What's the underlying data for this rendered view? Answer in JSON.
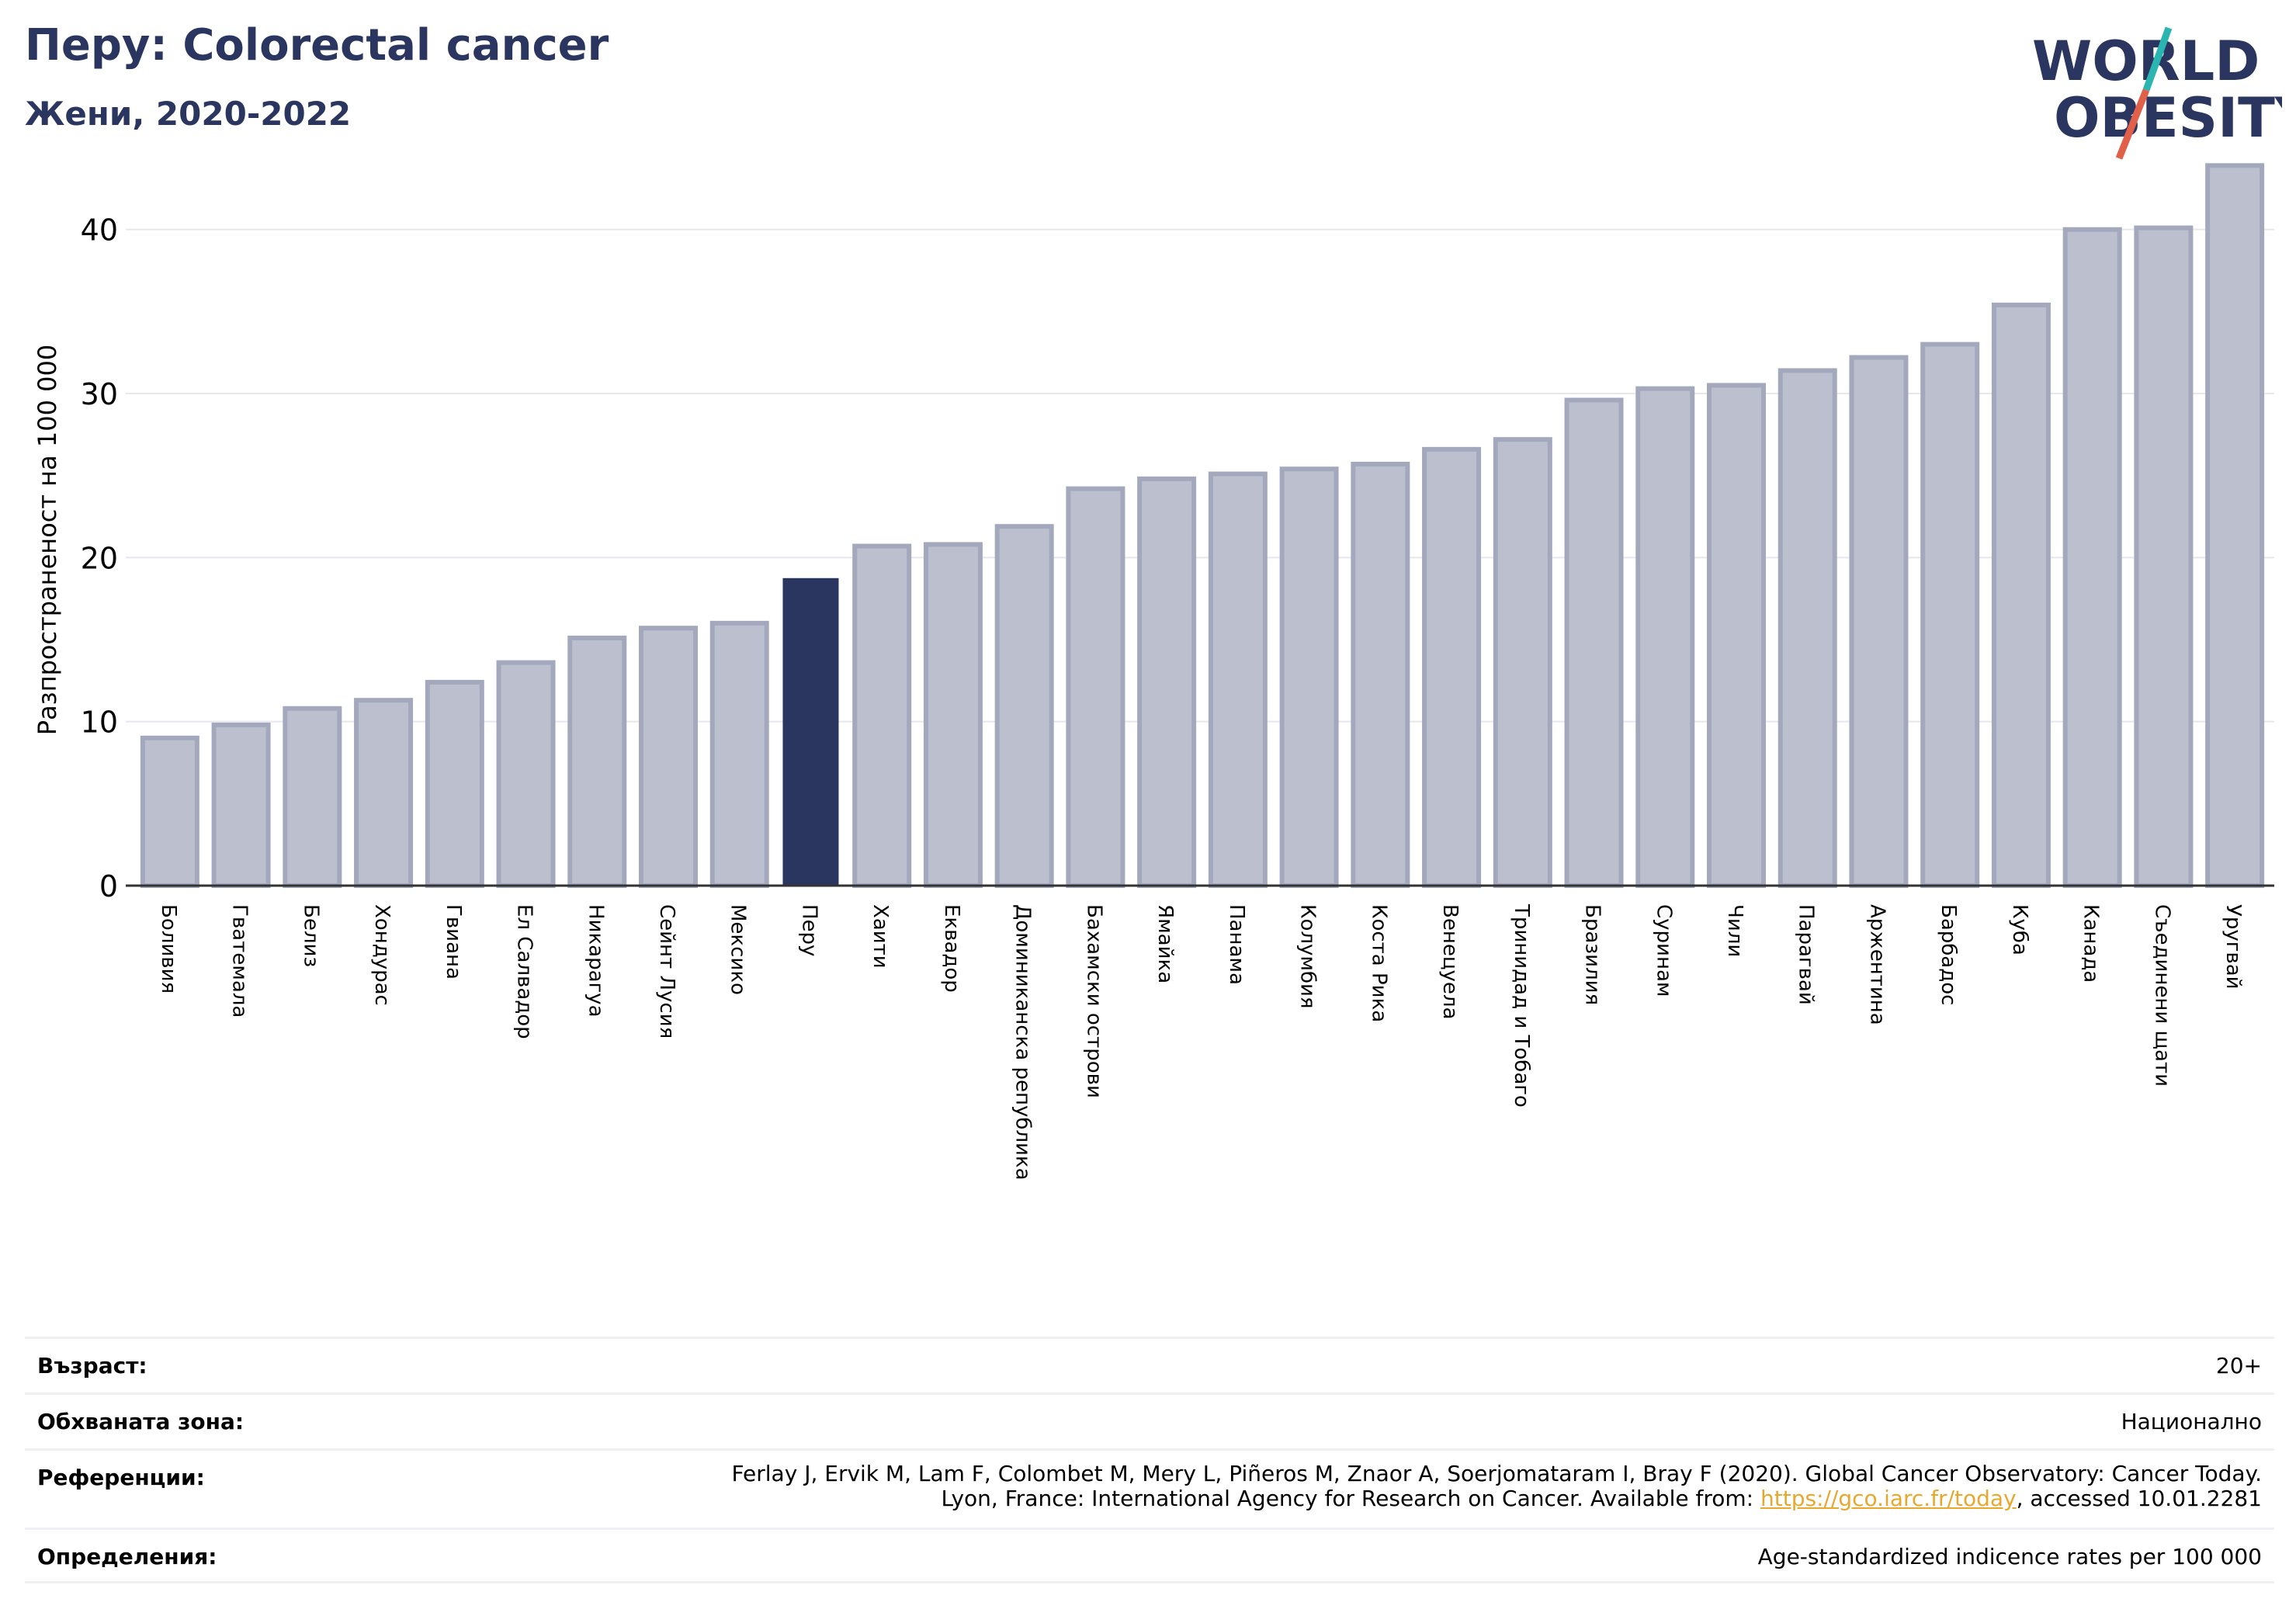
{
  "header": {
    "title": "Перу: Colorectal cancer",
    "subtitle": "Жени, 2020-2022"
  },
  "logo": {
    "line1": "WORLD",
    "line2": "OBESITY",
    "colors": {
      "text": "#2a3560",
      "slash_teal": "#2bb5b0",
      "slash_red": "#e0604a"
    }
  },
  "chart_data": {
    "type": "bar",
    "ylabel": "Разпространеност  на 100 000",
    "xlabel": "",
    "ylim": [
      0,
      45
    ],
    "yticks": [
      0,
      10,
      20,
      30,
      40
    ],
    "grid": true,
    "highlight": "Перу",
    "colors": {
      "bar": "#bcc0ce",
      "bar_edge": "#a3a8bd",
      "highlight": "#2a3560",
      "grid": "#e6e8ee"
    },
    "categories": [
      "Боливия",
      "Гватемала",
      "Белиз",
      "Хондурас",
      "Гвиана",
      "Ел Салвадор",
      "Никарагуа",
      "Сейнт Лусия",
      "Мексико",
      "Перу",
      "Хаити",
      "Еквадор",
      "Доминиканска република",
      "Бахамски острови",
      "Ямайка",
      "Панама",
      "Колумбия",
      "Коста Рика",
      "Венецуела",
      "Тринидад и Тобаго",
      "Бразилия",
      "Суринам",
      "Чили",
      "Парагвай",
      "Аржентина",
      "Барбадос",
      "Куба",
      "Канада",
      "Съединени щати",
      "Уругвай"
    ],
    "values": [
      9.0,
      9.8,
      10.8,
      11.3,
      12.4,
      13.6,
      15.1,
      15.7,
      16.0,
      18.7,
      20.7,
      20.8,
      21.9,
      24.2,
      24.8,
      25.1,
      25.4,
      25.7,
      26.6,
      27.2,
      29.6,
      30.3,
      30.5,
      31.4,
      32.2,
      33.0,
      35.4,
      40.0,
      40.1,
      43.9
    ]
  },
  "info": {
    "age": {
      "label": "Възраст:",
      "value": "20+"
    },
    "zone": {
      "label": "Обхваната зона:",
      "value": "Национално"
    },
    "references": {
      "label": "Референции:",
      "line1": "Ferlay J, Ervik M, Lam F, Colombet M, Mery L, Piñeros M, Znaor A, Soerjomataram I, Bray F (2020). Global Cancer Observatory: Cancer Today.",
      "line2_prefix": "Lyon, France: International Agency for Research on Cancer. Available from: ",
      "link": "https://gco.iarc.fr/today",
      "line2_suffix": ", accessed 10.01.2281"
    },
    "definitions": {
      "label": "Определения:",
      "value": "Age-standardized indicence rates per 100 000"
    }
  }
}
